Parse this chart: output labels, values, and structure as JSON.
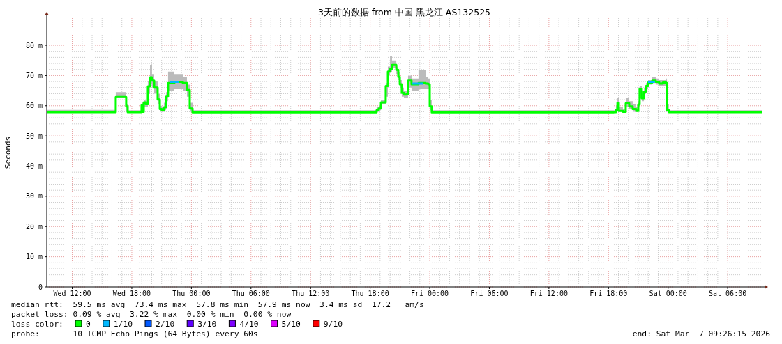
{
  "chart_data": {
    "type": "step",
    "title": "3天前的数据 from 中国 黑龙江 AS132525",
    "ylabel": "Seconds",
    "legend_title": "loss color:",
    "legend": "bottom",
    "grid": true,
    "line_style": "solid",
    "xlim": [
      "2026-03-04T09:26",
      "2026-03-07T09:26"
    ],
    "xticks": [
      {
        "value": "2026-03-04T12:00",
        "label": "Wed 12:00"
      },
      {
        "value": "2026-03-04T18:00",
        "label": "Wed 18:00"
      },
      {
        "value": "2026-03-05T00:00",
        "label": "Thu 00:00"
      },
      {
        "value": "2026-03-05T06:00",
        "label": "Thu 06:00"
      },
      {
        "value": "2026-03-05T12:00",
        "label": "Thu 12:00"
      },
      {
        "value": "2026-03-05T18:00",
        "label": "Thu 18:00"
      },
      {
        "value": "2026-03-06T00:00",
        "label": "Fri 00:00"
      },
      {
        "value": "2026-03-06T06:00",
        "label": "Fri 06:00"
      },
      {
        "value": "2026-03-06T12:00",
        "label": "Fri 12:00"
      },
      {
        "value": "2026-03-06T18:00",
        "label": "Fri 18:00"
      },
      {
        "value": "2026-03-07T00:00",
        "label": "Sat 00:00"
      },
      {
        "value": "2026-03-07T06:00",
        "label": "Sat 06:00"
      }
    ],
    "ylim": [
      0,
      89
    ],
    "yticks": [
      0,
      {
        "value": 10,
        "label": "10 m"
      },
      {
        "value": 20,
        "label": "20 m"
      },
      {
        "value": 30,
        "label": "30 m"
      },
      {
        "value": 40,
        "label": "40 m"
      },
      {
        "value": 50,
        "label": "50 m"
      },
      {
        "value": 60,
        "label": "60 m"
      },
      {
        "value": 70,
        "label": "70 m"
      },
      {
        "value": 80,
        "label": "80 m"
      }
    ],
    "series": [
      {
        "name": "0",
        "color": "#00ff00",
        "x": [
          "2026-03-04T09:26",
          "2026-03-04T16:23",
          "2026-03-04T17:26",
          "2026-03-04T17:35",
          "2026-03-04T18:59",
          "2026-03-04T19:08",
          "2026-03-04T19:12",
          "2026-03-04T19:24",
          "2026-03-04T19:37",
          "2026-03-04T19:50",
          "2026-03-04T20:02",
          "2026-03-04T20:15",
          "2026-03-04T20:36",
          "2026-03-04T20:49",
          "2026-03-04T21:01",
          "2026-03-04T21:14",
          "2026-03-04T21:27",
          "2026-03-04T21:39",
          "2026-03-04T22:17",
          "2026-03-04T23:08",
          "2026-03-04T23:33",
          "2026-03-04T23:50",
          "2026-03-05T00:07",
          "2026-03-05T18:39",
          "2026-03-05T18:52",
          "2026-03-05T19:05",
          "2026-03-05T19:34",
          "2026-03-05T19:47",
          "2026-03-05T20:00",
          "2026-03-05T20:12",
          "2026-03-05T20:38",
          "2026-03-05T20:50",
          "2026-03-05T20:59",
          "2026-03-05T21:11",
          "2026-03-05T21:24",
          "2026-03-05T21:41",
          "2026-03-05T21:49",
          "2026-03-05T22:10",
          "2026-03-05T22:52",
          "2026-03-05T23:35",
          "2026-03-05T23:51",
          "2026-03-06T00:00",
          "2026-03-06T00:12",
          "2026-03-06T18:32",
          "2026-03-06T18:45",
          "2026-03-06T18:54",
          "2026-03-06T19:02",
          "2026-03-06T19:27",
          "2026-03-06T19:44",
          "2026-03-06T20:05",
          "2026-03-06T20:26",
          "2026-03-06T20:47",
          "2026-03-06T21:00",
          "2026-03-06T21:08",
          "2026-03-06T21:21",
          "2026-03-06T21:34",
          "2026-03-06T21:46",
          "2026-03-06T21:59",
          "2026-03-06T22:24",
          "2026-03-06T22:45",
          "2026-03-06T23:06",
          "2026-03-06T23:28",
          "2026-03-06T23:49",
          "2026-03-06T23:53",
          "2026-03-07T00:05",
          "2026-03-07T09:26"
        ],
        "values": [
          57.9,
          62.9,
          59.8,
          57.9,
          60.2,
          58,
          61.1,
          60.5,
          66.4,
          69.4,
          68.3,
          66,
          62.1,
          58.9,
          58.5,
          59.5,
          63,
          67.5,
          67.9,
          67.5,
          65.2,
          59.1,
          57.8,
          58.5,
          59.1,
          61.1,
          66.5,
          71.3,
          72.1,
          73.5,
          71.9,
          69.6,
          67.1,
          64.3,
          63.7,
          63.9,
          68.3,
          67.1,
          67.5,
          67.3,
          67.1,
          59.8,
          57.8,
          57.9,
          58.5,
          61,
          58.3,
          58,
          60.8,
          59.8,
          58.9,
          58.3,
          60.4,
          65.6,
          62.5,
          64.7,
          66.5,
          67.7,
          68.3,
          67.9,
          67.3,
          67.7,
          67.5,
          58.5,
          57.9,
          57.9
        ],
        "lower": [
          57.8,
          62.5,
          58,
          57.8,
          59,
          57.8,
          59.5,
          59.5,
          64,
          67,
          66,
          64,
          60.5,
          58,
          58,
          58.5,
          61.5,
          65,
          65.5,
          65,
          63,
          58,
          57.7,
          58,
          58.5,
          60.5,
          63,
          70,
          71,
          72.5,
          70.5,
          68.5,
          66,
          63,
          62.5,
          62.5,
          66,
          65,
          65.5,
          65.5,
          65.5,
          58.5,
          57.7,
          57.8,
          58,
          59.5,
          58,
          57.8,
          59.5,
          59,
          58,
          58,
          59.5,
          64,
          61.5,
          64,
          65.5,
          67,
          67.5,
          67,
          66.5,
          66.5,
          66.5,
          58,
          57.8,
          57.8
        ],
        "upper": [
          58.6,
          64.5,
          60.5,
          58.5,
          61,
          59,
          62,
          61.5,
          68,
          73.3,
          70.5,
          68,
          64,
          60,
          59.5,
          61,
          64.5,
          71.3,
          70.5,
          69.5,
          67,
          61,
          58.5,
          59.5,
          60,
          62,
          67.5,
          73,
          76.3,
          75,
          73,
          71,
          68.5,
          66,
          65,
          65.5,
          70,
          69,
          71.8,
          69.5,
          69,
          62,
          58.5,
          58.5,
          60,
          62.5,
          59.5,
          59,
          62.5,
          61.5,
          60.5,
          59.5,
          61.5,
          66.5,
          64,
          66,
          67.5,
          68.5,
          69.5,
          69,
          68.5,
          68.5,
          69,
          60.5,
          58.5,
          58.5
        ]
      },
      {
        "name": "1/10",
        "color": "#00b8ff",
        "x": [
          "2026-03-04T21:50",
          "2026-03-04T22:45",
          "2026-03-05T12:00",
          "2026-03-05T22:15",
          "2026-03-05T23:20",
          "2026-03-06T12:00",
          "2026-03-06T21:59",
          "2026-03-06T22:40"
        ],
        "values": [
          67.9,
          67.9,
          null,
          67.3,
          67.3,
          null,
          67.9,
          67.9
        ]
      },
      {
        "name": "2/10",
        "color": "#0059ff"
      },
      {
        "name": "3/10",
        "color": "#5e00ff"
      },
      {
        "name": "4/10",
        "color": "#7e00ff"
      },
      {
        "name": "5/10",
        "color": "#dd00ff"
      },
      {
        "name": "9/10",
        "color": "#ff0000"
      }
    ],
    "annotations": [
      "median rtt:  59.5 ms avg  73.4 ms max  57.8 ms min  57.9 ms now  3.4 ms sd  17.2   am/s",
      "packet loss: 0.09 % avg  3.22 % max  0.00 % min  0.00 % now",
      "probe:       10 ICMP Echo Pings (64 Bytes) every 60s",
      "end: Sat Mar  7 09:26:15 2026"
    ]
  }
}
